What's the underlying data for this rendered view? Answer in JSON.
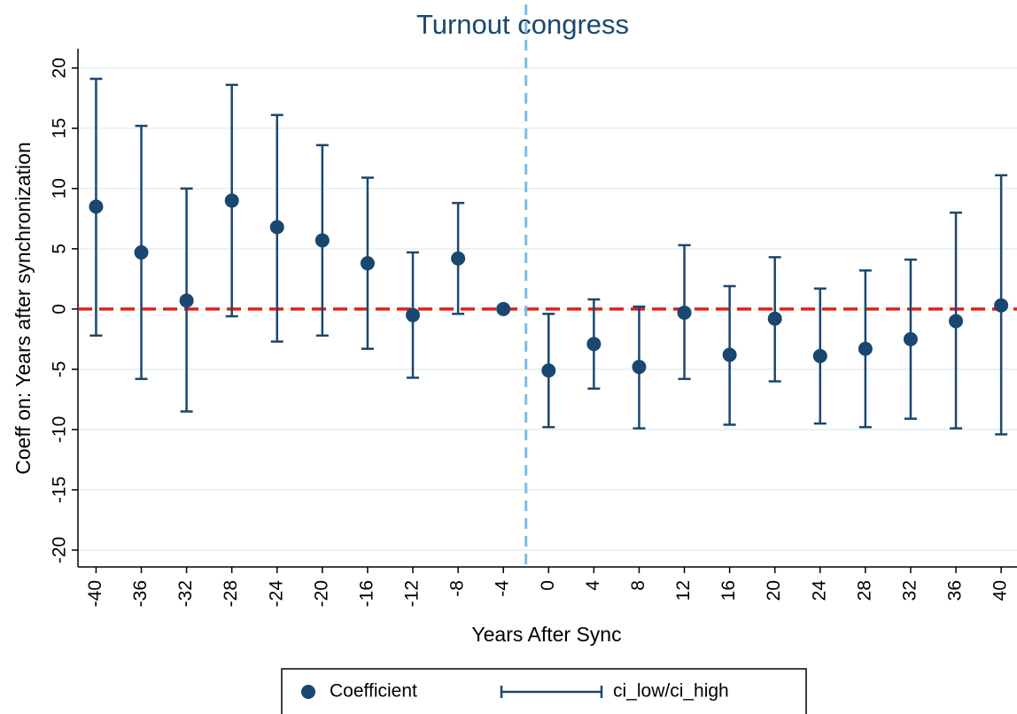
{
  "chart_data": {
    "type": "scatter",
    "title": "Turnout congress",
    "xlabel": "Years After Sync",
    "ylabel": "Coeff on: Years after synchronization",
    "x": [
      -40,
      -36,
      -32,
      -28,
      -24,
      -20,
      -16,
      -12,
      -8,
      -4,
      0,
      4,
      8,
      12,
      16,
      20,
      24,
      28,
      32,
      36,
      40
    ],
    "series": [
      {
        "name": "Coefficient",
        "color": "#1a476f",
        "values": [
          8.5,
          4.7,
          0.7,
          9.0,
          6.8,
          5.7,
          3.8,
          -0.5,
          4.2,
          0,
          -5.1,
          -2.9,
          -4.8,
          -0.3,
          -3.8,
          -0.8,
          -3.9,
          -3.3,
          -2.5,
          -1.0,
          0.3
        ]
      },
      {
        "name": "ci_low/ci_high",
        "color": "#1a476f",
        "low": [
          -2.2,
          -5.8,
          -8.5,
          -0.6,
          -2.7,
          -2.2,
          -3.3,
          -5.7,
          -0.4,
          null,
          -9.8,
          -6.6,
          -9.9,
          -5.8,
          -9.6,
          -6.0,
          -9.5,
          -9.8,
          -9.1,
          -9.9,
          -10.4
        ],
        "high": [
          19.1,
          15.2,
          10.0,
          18.6,
          16.1,
          13.6,
          10.9,
          4.7,
          8.8,
          null,
          -0.4,
          0.8,
          0.2,
          5.3,
          1.9,
          4.3,
          1.7,
          3.2,
          4.1,
          8.0,
          11.1
        ]
      }
    ],
    "xlim": [
      -41.6,
      41.4
    ],
    "ylim": [
      -21.4,
      21.6
    ],
    "xticks": [
      -40,
      -36,
      -32,
      -28,
      -24,
      -20,
      -16,
      -12,
      -8,
      -4,
      0,
      4,
      8,
      12,
      16,
      20,
      24,
      28,
      32,
      36,
      40
    ],
    "yticks": [
      -20,
      -15,
      -10,
      -5,
      0,
      5,
      10,
      15,
      20
    ],
    "grid": true,
    "hline": {
      "value": 0,
      "color": "#e0201b"
    },
    "vline": {
      "value": -2,
      "color": "#7fbbe6"
    },
    "legend": "bottom"
  }
}
